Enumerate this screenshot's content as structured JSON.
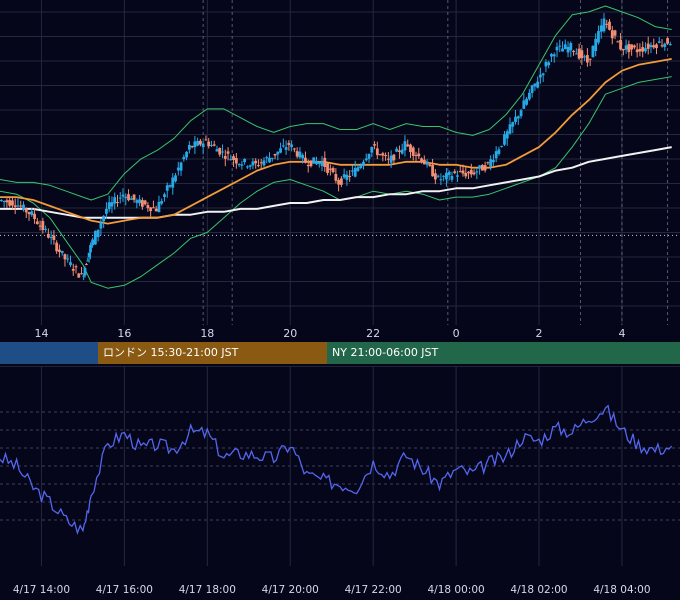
{
  "colors": {
    "background": "#05061a",
    "grid": "#24283d",
    "bull_candle": "#26a9e6",
    "bear_candle": "#f28e74",
    "ma_fast": "#f39a3a",
    "ma_slow": "#f2f2f2",
    "bollinger": "#39c46a",
    "oscillator": "#5566ee",
    "tokyo_session": "#1f4e86",
    "london_session": "#8a5a12",
    "ny_session": "#23674a"
  },
  "sessions": [
    {
      "id": "tokyo",
      "label": "",
      "color": "#1f4e86"
    },
    {
      "id": "london",
      "label": "ロンドン 15:30-21:00 JST",
      "color": "#8a5a12"
    },
    {
      "id": "ny",
      "label": "NY 21:00-06:00 JST",
      "color": "#23674a"
    }
  ],
  "chart_data": [
    {
      "type": "line",
      "description_series": [
        "candles",
        "ma_fast",
        "ma_slow",
        "bb_upper",
        "bb_lower"
      ],
      "x_ticks_hour": [
        "14",
        "16",
        "18",
        "20",
        "22",
        "0",
        "2",
        "4"
      ],
      "x_range_hours": [
        13.0,
        29.4
      ],
      "y_range": [
        0,
        100
      ],
      "grid": true,
      "reference_line_y": 22,
      "x": [
        13.0,
        13.4,
        13.8,
        14.2,
        14.6,
        15.0,
        15.2,
        15.6,
        16.0,
        16.4,
        16.8,
        17.2,
        17.6,
        18.0,
        18.4,
        18.8,
        19.2,
        19.6,
        20.0,
        20.4,
        20.8,
        21.2,
        21.6,
        22.0,
        22.4,
        22.8,
        23.2,
        23.6,
        24.0,
        24.4,
        24.8,
        25.2,
        25.6,
        26.0,
        26.4,
        26.8,
        27.2,
        27.6,
        28.0,
        28.4,
        28.8,
        29.2
      ],
      "series": [
        {
          "id": "price",
          "values": [
            34,
            33,
            29,
            22,
            14,
            8,
            18,
            31,
            36,
            33,
            31,
            41,
            52,
            54,
            50,
            47,
            46,
            49,
            53,
            47,
            47,
            40,
            44,
            52,
            47,
            53,
            48,
            41,
            43,
            43,
            46,
            55,
            65,
            75,
            85,
            86,
            81,
            95,
            86,
            85,
            87,
            88
          ]
        },
        {
          "id": "ma_fast",
          "values": [
            35,
            35,
            34,
            32,
            30,
            28,
            27,
            26,
            27,
            28,
            28,
            29,
            32,
            35,
            38,
            41,
            44,
            46,
            47,
            47,
            47,
            46,
            46,
            46,
            46,
            47,
            47,
            46,
            46,
            45,
            45,
            46,
            49,
            52,
            57,
            63,
            68,
            74,
            78,
            80,
            81,
            82
          ]
        },
        {
          "id": "ma_slow",
          "values": [
            31,
            31,
            31,
            30,
            29,
            28,
            28,
            28,
            28,
            28,
            28,
            29,
            29,
            30,
            30,
            31,
            31,
            32,
            33,
            33,
            34,
            34,
            35,
            35,
            36,
            36,
            37,
            37,
            38,
            38,
            39,
            40,
            41,
            42,
            44,
            45,
            47,
            48,
            49,
            50,
            51,
            52
          ]
        },
        {
          "id": "bb_upper",
          "values": [
            41,
            40,
            40,
            39,
            37,
            35,
            34,
            36,
            43,
            48,
            51,
            55,
            61,
            65,
            65,
            62,
            59,
            57,
            59,
            60,
            60,
            58,
            58,
            60,
            58,
            60,
            59,
            59,
            57,
            56,
            58,
            63,
            70,
            80,
            90,
            97,
            98,
            100,
            98,
            96,
            93,
            92
          ]
        },
        {
          "id": "bb_lower",
          "values": [
            37,
            36,
            33,
            28,
            20,
            12,
            6,
            4,
            5,
            8,
            12,
            16,
            21,
            23,
            28,
            33,
            37,
            40,
            41,
            39,
            37,
            34,
            35,
            37,
            36,
            37,
            36,
            34,
            35,
            35,
            36,
            38,
            40,
            42,
            45,
            52,
            60,
            70,
            72,
            74,
            75,
            76
          ]
        }
      ]
    },
    {
      "type": "line",
      "name": "oscillator",
      "x_dates": [
        "4/17 14:00",
        "4/17 16:00",
        "4/17 18:00",
        "4/17 20:00",
        "4/17 22:00",
        "4/18 00:00",
        "4/18 02:00",
        "4/18 04:00"
      ],
      "y_range": [
        0,
        100
      ],
      "grid": true,
      "x": [
        13.0,
        13.4,
        13.8,
        14.2,
        14.6,
        15.0,
        15.2,
        15.6,
        16.0,
        16.4,
        16.8,
        17.2,
        17.6,
        18.0,
        18.4,
        18.8,
        19.2,
        19.6,
        20.0,
        20.4,
        20.8,
        21.2,
        21.6,
        22.0,
        22.4,
        22.8,
        23.2,
        23.6,
        24.0,
        24.4,
        24.8,
        25.2,
        25.6,
        26.0,
        26.4,
        26.8,
        27.2,
        27.6,
        28.0,
        28.4,
        28.8,
        29.2
      ],
      "values": [
        55,
        50,
        38,
        30,
        20,
        14,
        35,
        62,
        68,
        60,
        62,
        59,
        69,
        68,
        55,
        57,
        56,
        54,
        62,
        45,
        42,
        40,
        38,
        52,
        45,
        56,
        48,
        40,
        48,
        46,
        52,
        55,
        66,
        64,
        71,
        69,
        77,
        82,
        70,
        62,
        59,
        61
      ]
    }
  ]
}
